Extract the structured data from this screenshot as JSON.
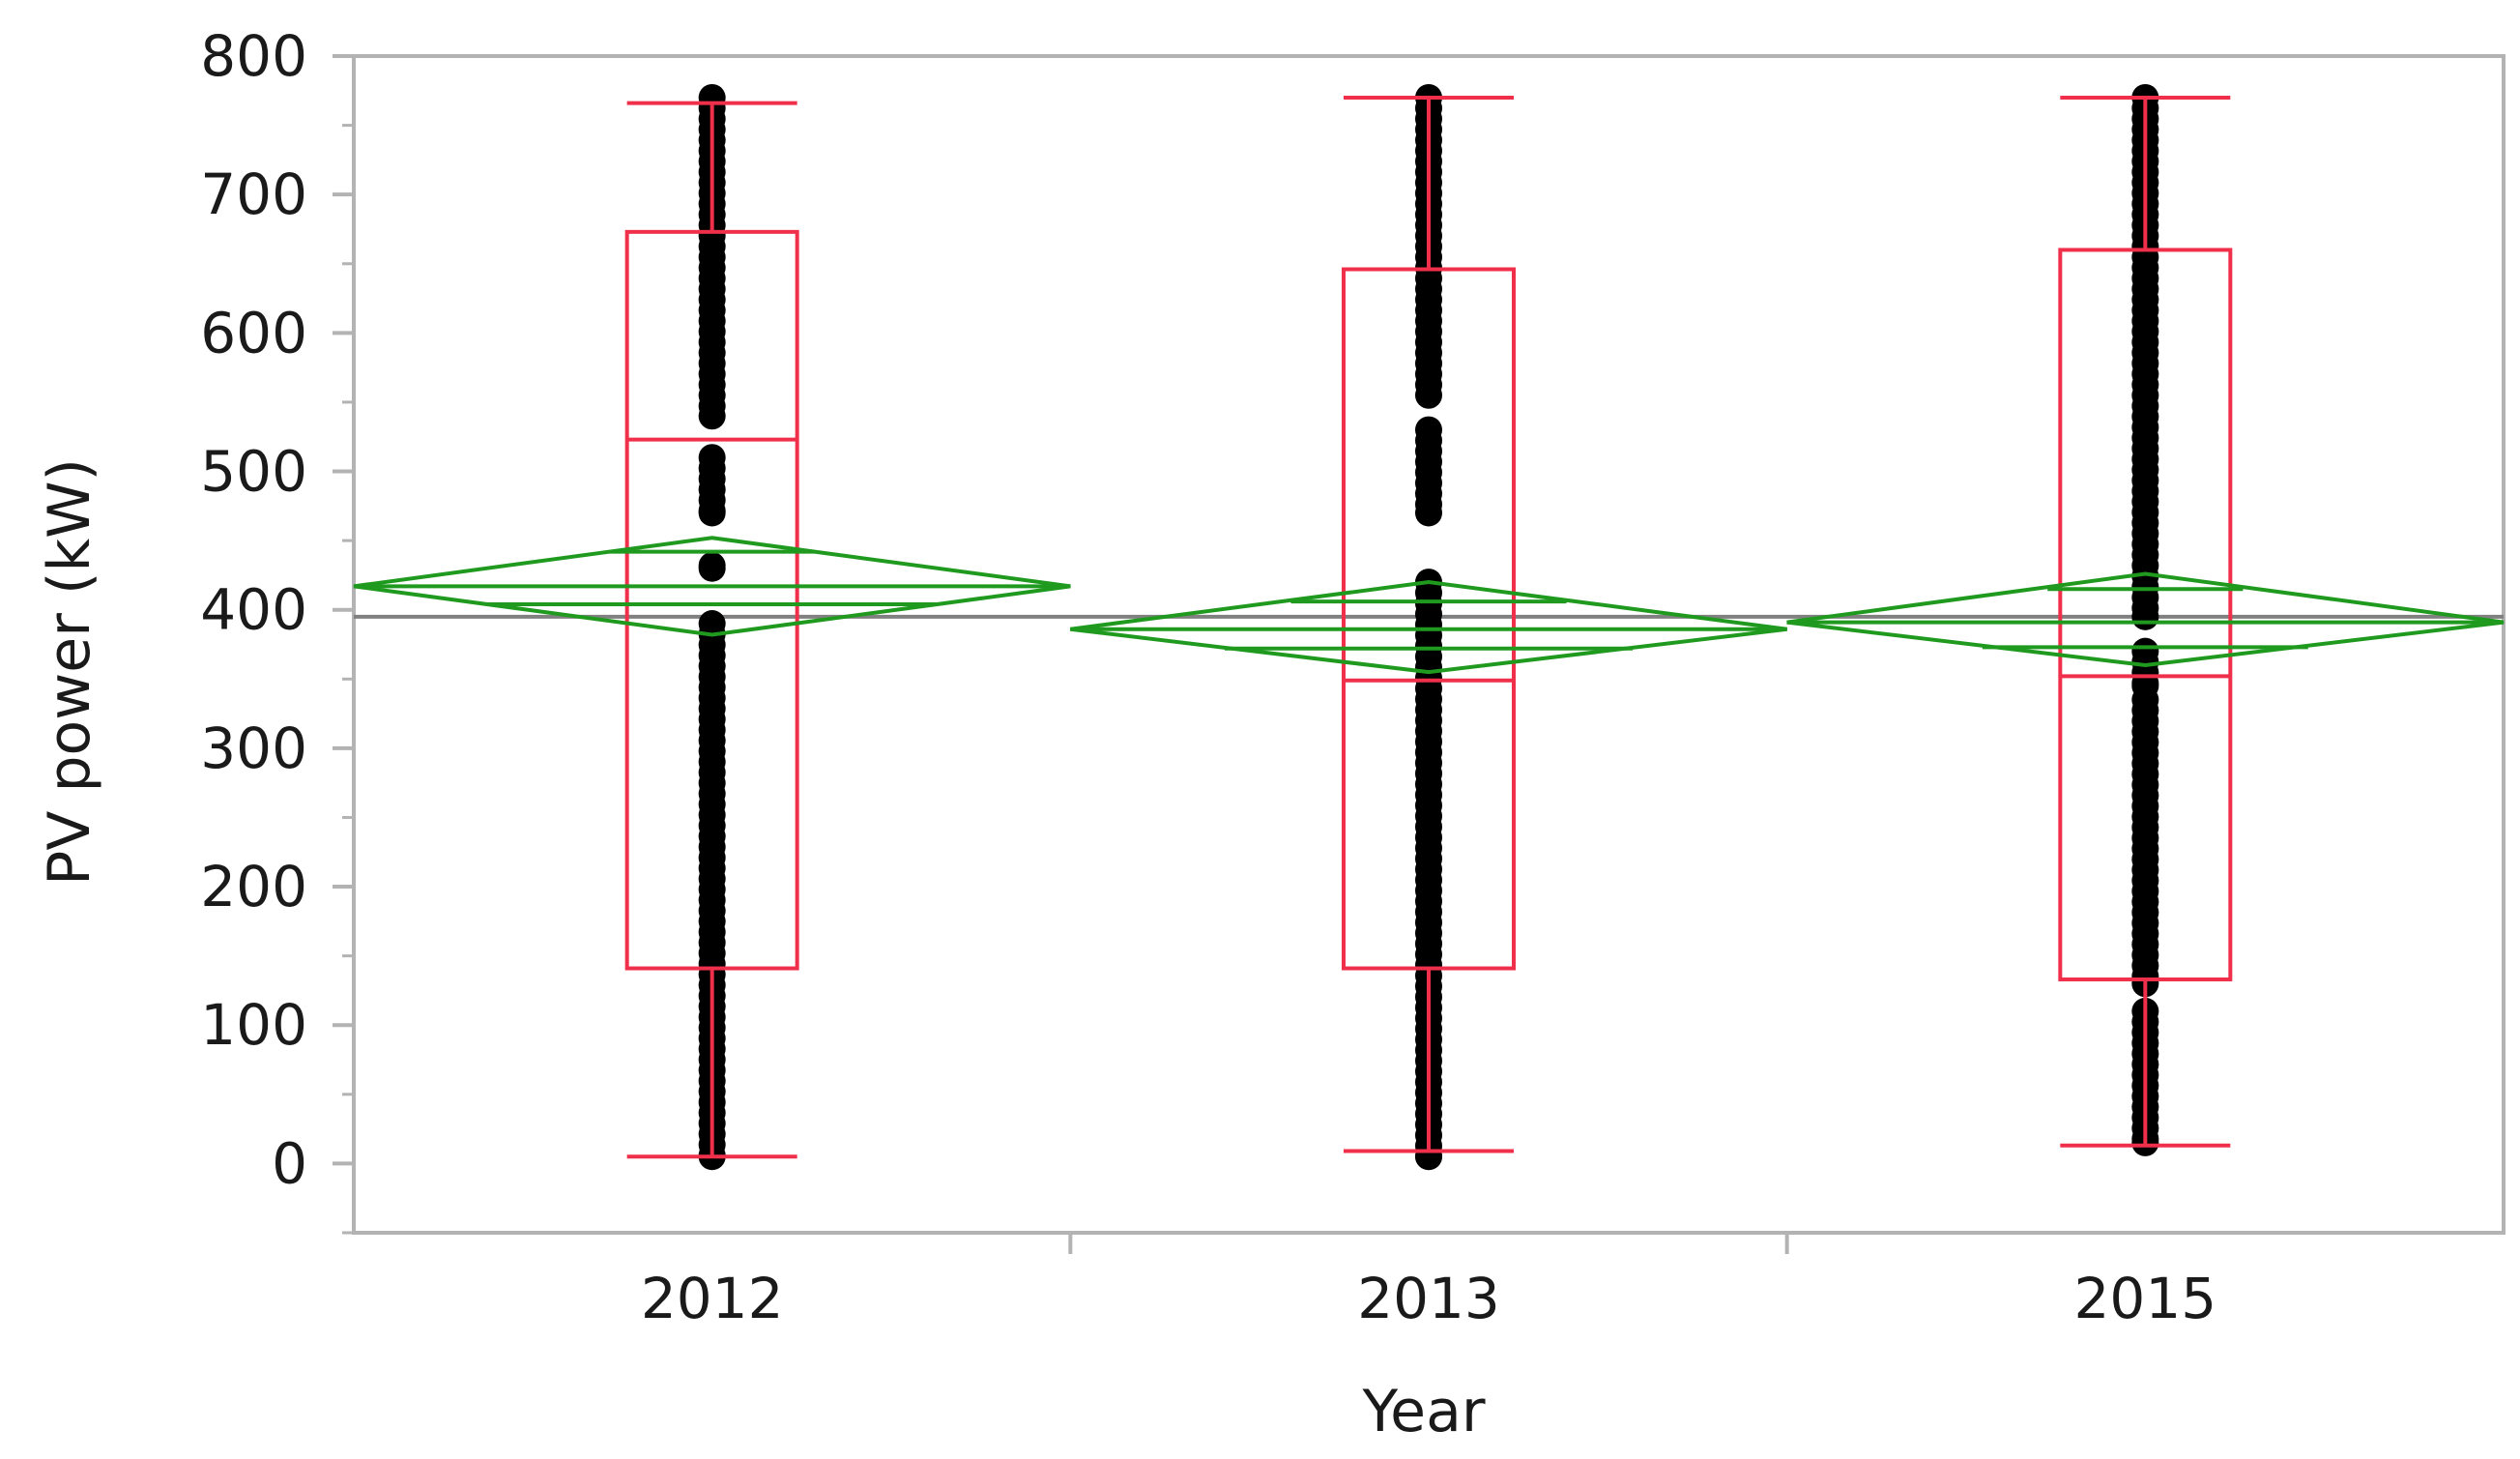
{
  "chart_data": {
    "type": "box",
    "title": "",
    "xlabel": "Year",
    "ylabel": "PV power (kW)",
    "categories": [
      "2012",
      "2013",
      "2015"
    ],
    "ylim": [
      -50,
      800
    ],
    "yticks": [
      0,
      100,
      200,
      300,
      400,
      500,
      600,
      700,
      800
    ],
    "grand_mean": 395,
    "boxes": [
      {
        "category": "2012",
        "whisker_low": 5,
        "q1": 141,
        "median": 523,
        "q3": 673,
        "whisker_high": 766,
        "mean": 417,
        "mean_ci": [
          382,
          452
        ],
        "mean_diamond_lines": [
          404,
          442
        ]
      },
      {
        "category": "2013",
        "whisker_low": 9,
        "q1": 141,
        "median": 349,
        "q3": 646,
        "whisker_high": 770,
        "mean": 386,
        "mean_ci": [
          355,
          420
        ],
        "mean_diamond_lines": [
          372,
          406
        ]
      },
      {
        "category": "2015",
        "whisker_low": 13,
        "q1": 133,
        "median": 352,
        "q3": 660,
        "whisker_high": 770,
        "mean": 391,
        "mean_ci": [
          360,
          426
        ],
        "mean_diamond_lines": [
          373,
          415
        ]
      }
    ],
    "point_ranges": [
      {
        "category": "2012",
        "segments": [
          [
            5,
            390
          ],
          [
            430,
            432
          ],
          [
            470,
            510
          ],
          [
            540,
            770
          ]
        ]
      },
      {
        "category": "2013",
        "segments": [
          [
            5,
            420
          ],
          [
            470,
            530
          ],
          [
            555,
            770
          ]
        ]
      },
      {
        "category": "2015",
        "segments": [
          [
            15,
            110
          ],
          [
            130,
            335
          ],
          [
            345,
            370
          ],
          [
            395,
            770
          ]
        ]
      }
    ],
    "colors": {
      "box": "#f0304a",
      "diamond": "#1f9a1f",
      "points": "#000000",
      "grand_mean": "#808080",
      "frame": "#b3b3b3"
    },
    "grid": false,
    "legend": "none"
  }
}
